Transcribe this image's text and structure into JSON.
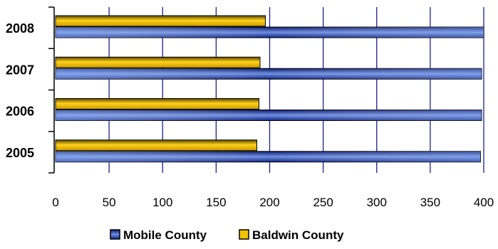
{
  "chart_data": {
    "type": "bar",
    "orientation": "horizontal",
    "categories": [
      "2005",
      "2006",
      "2007",
      "2008"
    ],
    "series": [
      {
        "name": "Mobile County",
        "values": [
          397,
          398,
          398,
          400
        ]
      },
      {
        "name": "Baldwin County",
        "values": [
          188,
          190,
          191,
          196
        ]
      }
    ],
    "xlim": [
      0,
      400
    ],
    "xticks": [
      "0",
      "50",
      "100",
      "150",
      "200",
      "250",
      "300",
      "350",
      "400"
    ],
    "grid": true,
    "legend_position": "bottom",
    "title": "",
    "xlabel": "",
    "ylabel": ""
  },
  "colors": {
    "mobile_county": "#3b58b8",
    "baldwin_county": "#f2c200",
    "gridline": "#1f1f8f",
    "axis": "#000000"
  }
}
